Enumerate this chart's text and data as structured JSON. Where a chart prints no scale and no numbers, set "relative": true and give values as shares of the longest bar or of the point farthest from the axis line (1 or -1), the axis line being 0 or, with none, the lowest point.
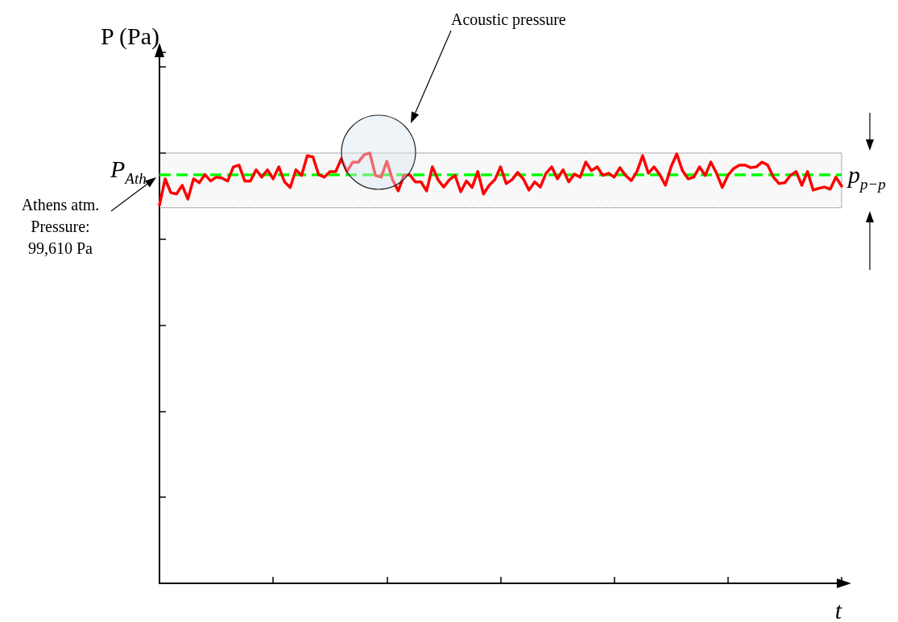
{
  "chart_data": {
    "type": "line",
    "relative": true,
    "xlabel": "t",
    "ylabel": "P (Pa)",
    "grid": false,
    "marker": "none",
    "line_style": "solid",
    "categories": [
      null,
      null,
      null,
      null,
      null,
      null,
      null,
      null,
      null,
      null,
      null,
      null,
      null,
      null,
      null,
      null,
      null,
      null,
      null,
      null,
      null,
      null,
      null,
      null,
      null,
      null,
      null,
      null,
      null,
      null,
      null,
      null,
      null,
      null,
      null,
      null,
      null,
      null,
      null,
      null,
      null,
      null,
      null,
      null,
      null,
      null,
      null,
      null,
      null,
      null,
      null,
      null,
      null,
      null,
      null,
      null,
      null,
      null,
      null,
      null,
      null,
      null,
      null,
      null,
      null,
      null,
      null,
      null,
      null,
      null,
      null,
      null,
      null,
      null,
      null,
      null,
      null,
      null,
      null,
      null,
      null,
      null,
      null,
      null,
      null,
      null,
      null,
      null,
      null,
      null,
      null,
      null,
      null,
      null,
      null,
      null,
      null,
      null,
      null,
      null,
      null,
      null,
      null,
      null,
      null,
      null,
      null,
      null,
      null,
      null,
      null,
      null,
      null,
      null,
      null,
      null,
      null,
      null,
      null,
      null,
      null
    ],
    "series": [
      {
        "color": "#ff0000",
        "values": [
          0.879,
          0.94,
          0.908,
          0.905,
          0.925,
          0.893,
          0.94,
          0.931,
          0.95,
          0.935,
          0.944,
          0.942,
          0.935,
          0.968,
          0.972,
          0.935,
          0.935,
          0.961,
          0.944,
          0.961,
          0.94,
          0.968,
          0.933,
          0.92,
          0.961,
          0.948,
          0.994,
          0.991,
          0.95,
          0.944,
          0.957,
          0.957,
          0.987,
          0.957,
          0.979,
          0.979,
          0.996,
          1.0,
          0.948,
          0.944,
          0.981,
          0.938,
          0.912,
          0.948,
          0.95,
          0.933,
          0.933,
          0.912,
          0.968,
          0.938,
          0.921,
          0.938,
          0.948,
          0.91,
          0.935,
          0.92,
          0.957,
          0.905,
          0.925,
          0.938,
          0.968,
          0.929,
          0.938,
          0.955,
          0.94,
          0.914,
          0.933,
          0.921,
          0.953,
          0.968,
          0.94,
          0.961,
          0.933,
          0.951,
          0.944,
          0.979,
          0.959,
          0.968,
          0.948,
          0.953,
          0.944,
          0.966,
          0.948,
          0.936,
          0.957,
          0.994,
          0.953,
          0.968,
          0.95,
          0.925,
          0.968,
          0.998,
          0.959,
          0.94,
          0.944,
          0.968,
          0.948,
          0.979,
          0.953,
          0.92,
          0.948,
          0.964,
          0.972,
          0.972,
          0.966,
          0.968,
          0.979,
          0.972,
          0.944,
          0.929,
          0.931,
          0.948,
          0.957,
          0.925,
          0.957,
          0.914,
          0.918,
          0.921,
          0.916,
          0.944,
          0.923
        ]
      }
    ],
    "ref_lines": [
      {
        "axis": "y",
        "value": 0.95,
        "label": "P$_{Ath.}$",
        "color": "#00ff00",
        "line_style": "dashed"
      }
    ],
    "bands": [
      {
        "axis": "y",
        "from": 0.873,
        "to": 1.0,
        "label": "p$_{p−p}$",
        "color": "#555555"
      }
    ],
    "annotations": [
      "Acoustic pressure",
      "Athens atm.\nPressure:\n99,610 Pa"
    ]
  }
}
